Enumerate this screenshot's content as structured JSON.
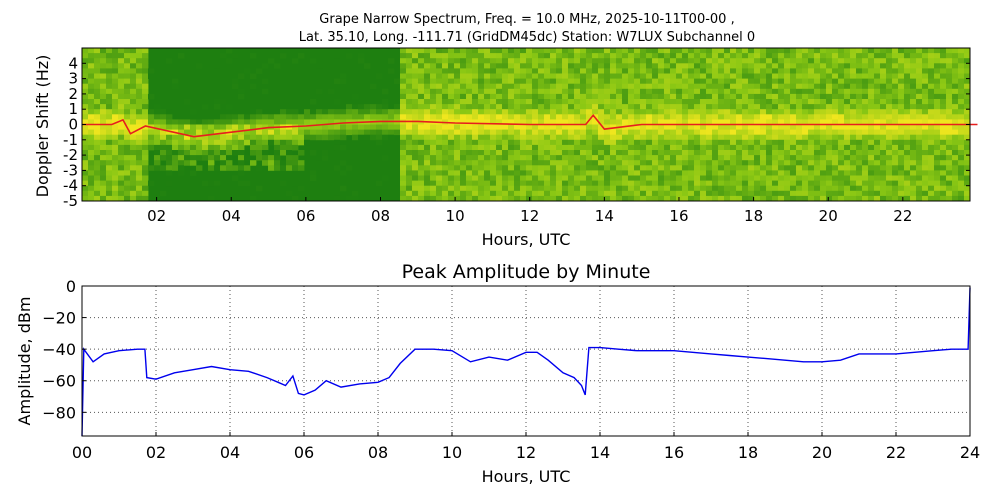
{
  "spectrogram": {
    "title_line1": "Grape Narrow Spectrum, Freq. = 10.0 MHz, 2025-10-11T00-00 ,",
    "title_line2": "Lat.  35.10, Long. -111.71 (GridDM45dc) Station: W7LUX Subchannel 0",
    "ylabel": "Doppler Shift (Hz)",
    "xlabel": "Hours, UTC",
    "yticks": [
      "4",
      "3",
      "2",
      "1",
      "0",
      "-1",
      "-2",
      "-3",
      "-4",
      "-5"
    ],
    "xticks": [
      "02",
      "04",
      "06",
      "08",
      "10",
      "12",
      "14",
      "16",
      "18",
      "20",
      "22"
    ]
  },
  "chart_data": [
    {
      "type": "heatmap",
      "title": "Grape Narrow Spectrum, Freq. = 10.0 MHz, 2025-10-11T00-00 , Lat.  35.10, Long. -111.71 (GridDM45dc) Station: W7LUX Subchannel 0",
      "xlabel": "Hours, UTC",
      "ylabel": "Doppler Shift (Hz)",
      "xlim": [
        0,
        23.8
      ],
      "ylim": [
        -5,
        5
      ],
      "colors": {
        "background": "#1e7f10",
        "mid": "#8cc814",
        "high": "#f0e61e",
        "peak": "#e61e1e"
      },
      "carrier_trace": [
        [
          0,
          0
        ],
        [
          0.8,
          0
        ],
        [
          1.1,
          0.3
        ],
        [
          1.3,
          -0.6
        ],
        [
          1.7,
          -0.1
        ],
        [
          3,
          -0.8
        ],
        [
          4,
          -0.5
        ],
        [
          5,
          -0.2
        ],
        [
          6,
          -0.1
        ],
        [
          7,
          0.1
        ],
        [
          8,
          0.2
        ],
        [
          9,
          0.2
        ],
        [
          10,
          0.1
        ],
        [
          12,
          0
        ],
        [
          13.5,
          0
        ],
        [
          13.7,
          0.6
        ],
        [
          14,
          -0.3
        ],
        [
          15,
          0
        ],
        [
          24,
          0
        ]
      ]
    },
    {
      "type": "line",
      "title": "Peak Amplitude by Minute",
      "xlabel": "Hours, UTC",
      "ylabel": "Amplitude, dBm",
      "xlim": [
        0,
        24
      ],
      "ylim": [
        -95,
        0
      ],
      "grid": true,
      "color": "#0000ee",
      "xticks": [
        "00",
        "02",
        "04",
        "06",
        "08",
        "10",
        "12",
        "14",
        "16",
        "18",
        "20",
        "22",
        "24"
      ],
      "yticks": [
        0,
        -20,
        -40,
        -60,
        -80
      ],
      "x": [
        0,
        0.05,
        0.3,
        0.6,
        1.0,
        1.5,
        1.7,
        1.75,
        2.0,
        2.5,
        3.0,
        3.5,
        4.0,
        4.5,
        5.0,
        5.3,
        5.5,
        5.7,
        5.85,
        6.0,
        6.3,
        6.6,
        7.0,
        7.5,
        8.0,
        8.3,
        8.6,
        9.0,
        9.5,
        10.0,
        10.5,
        11.0,
        11.5,
        12.0,
        12.3,
        12.6,
        13.0,
        13.3,
        13.5,
        13.6,
        13.7,
        14.0,
        14.5,
        15.0,
        15.5,
        16.0,
        16.5,
        17.0,
        17.5,
        18.0,
        18.5,
        19.0,
        19.5,
        20.0,
        20.5,
        21.0,
        21.5,
        22.0,
        22.5,
        23.0,
        23.5,
        23.95,
        24.0
      ],
      "y": [
        -95,
        -40,
        -48,
        -43,
        -41,
        -40,
        -40,
        -58,
        -59,
        -55,
        -53,
        -51,
        -53,
        -54,
        -58,
        -61,
        -63,
        -57,
        -68,
        -69,
        -66,
        -60,
        -64,
        -62,
        -61,
        -58,
        -49,
        -40,
        -40,
        -41,
        -48,
        -45,
        -47,
        -42,
        -42,
        -47,
        -55,
        -58,
        -63,
        -69,
        -39,
        -39,
        -40,
        -41,
        -41,
        -41,
        -42,
        -43,
        -44,
        -45,
        -46,
        -47,
        -48,
        -48,
        -47,
        -43,
        -43,
        -43,
        -42,
        -41,
        -40,
        -40,
        -1
      ]
    }
  ]
}
